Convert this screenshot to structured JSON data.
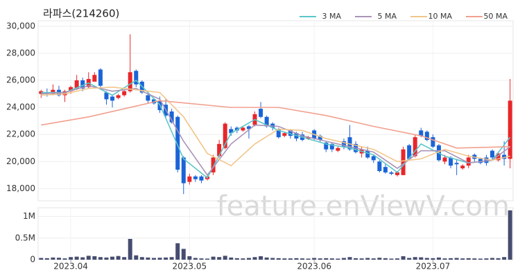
{
  "chart_data": {
    "type": "candlestick",
    "title": "라파스(214260)",
    "watermark": "feature.enViewV.com",
    "up_color": "#e8262a",
    "down_color": "#1a64d8",
    "volume_color": "#474d70",
    "grid": true,
    "open": [
      25000,
      25100,
      25000,
      25300,
      24900,
      25200,
      25400,
      26000,
      25500,
      25900,
      26800,
      25100,
      24800,
      24700,
      24900,
      25200,
      26700,
      25900,
      24900,
      24600,
      24500,
      24200,
      23700,
      23300,
      20300,
      18500,
      18900,
      18900,
      18700,
      19200,
      20400,
      21000,
      22400,
      22500,
      22300,
      22600,
      22700,
      23900,
      23300,
      22800,
      22400,
      21900,
      22300,
      22100,
      22000,
      21700,
      22300,
      21900,
      21400,
      21300,
      20800,
      21500,
      21800,
      21300,
      20600,
      20800,
      20400,
      20000,
      19600,
      19200,
      19000,
      19000,
      21200,
      20400,
      22300,
      22200,
      21800,
      21200,
      20000,
      20300,
      19900,
      19500,
      19700,
      20500,
      20200,
      20300,
      20800,
      20100,
      20500,
      20200
    ],
    "high": [
      25300,
      25400,
      25700,
      25600,
      25300,
      25600,
      26400,
      26200,
      26600,
      26600,
      26900,
      25200,
      24900,
      25000,
      25300,
      29400,
      26800,
      26000,
      25000,
      24700,
      24800,
      24600,
      23900,
      23400,
      20400,
      19100,
      19000,
      19000,
      19000,
      20500,
      21600,
      22900,
      22600,
      22600,
      22600,
      22700,
      23700,
      24400,
      23400,
      22900,
      22500,
      22200,
      22400,
      22200,
      22200,
      21900,
      22400,
      22000,
      21500,
      21400,
      21100,
      21700,
      22700,
      21500,
      21100,
      21100,
      20500,
      20100,
      19800,
      19300,
      19300,
      21100,
      21300,
      22000,
      22500,
      22300,
      22000,
      21300,
      20500,
      20400,
      20200,
      19800,
      20500,
      20600,
      20300,
      20500,
      20900,
      20700,
      21500,
      26100
    ],
    "low": [
      24700,
      24800,
      24900,
      24800,
      24400,
      25000,
      25300,
      25200,
      25400,
      25900,
      25400,
      24200,
      24000,
      24600,
      24800,
      25100,
      25500,
      25000,
      24300,
      24200,
      23600,
      23200,
      22800,
      19200,
      17600,
      18300,
      18500,
      18400,
      18600,
      19000,
      20300,
      20900,
      21900,
      22100,
      22200,
      21700,
      22600,
      23200,
      22500,
      22300,
      21700,
      21800,
      21700,
      21500,
      21500,
      21600,
      21600,
      21400,
      20700,
      20700,
      20700,
      20900,
      20800,
      20600,
      20300,
      20200,
      19900,
      19200,
      19100,
      19000,
      18900,
      19000,
      20100,
      20300,
      21800,
      21500,
      21000,
      20000,
      19800,
      19500,
      19000,
      19400,
      19500,
      20000,
      19800,
      19700,
      20100,
      20000,
      19700,
      19500
    ],
    "close": [
      25200,
      25000,
      25300,
      24900,
      25200,
      25500,
      26000,
      25400,
      26100,
      26400,
      25600,
      24600,
      24500,
      24900,
      25200,
      26600,
      25700,
      25100,
      24500,
      24300,
      23800,
      23400,
      22900,
      19400,
      18400,
      18900,
      18700,
      18600,
      18900,
      20300,
      21300,
      22800,
      22100,
      22300,
      22500,
      22400,
      23500,
      23300,
      22600,
      22500,
      21800,
      22100,
      21900,
      21700,
      21600,
      21800,
      21700,
      21600,
      20900,
      20900,
      21000,
      21100,
      20900,
      20700,
      20900,
      20300,
      20100,
      19300,
      19200,
      19100,
      19200,
      20900,
      20200,
      21800,
      21900,
      21600,
      21100,
      20100,
      20300,
      19700,
      19800,
      19700,
      20300,
      20200,
      19900,
      19900,
      20300,
      20600,
      20200,
      24500
    ],
    "volume": [
      40000,
      35000,
      50000,
      45000,
      30000,
      60000,
      70000,
      55000,
      90000,
      80000,
      60000,
      50000,
      70000,
      85000,
      60000,
      480000,
      100000,
      60000,
      50000,
      40000,
      45000,
      50000,
      60000,
      380000,
      250000,
      80000,
      40000,
      30000,
      25000,
      70000,
      60000,
      90000,
      50000,
      35000,
      30000,
      40000,
      60000,
      80000,
      50000,
      40000,
      35000,
      30000,
      30000,
      35000,
      30000,
      25000,
      40000,
      30000,
      35000,
      30000,
      25000,
      40000,
      60000,
      35000,
      30000,
      40000,
      30000,
      45000,
      35000,
      25000,
      30000,
      80000,
      40000,
      60000,
      55000,
      40000,
      35000,
      50000,
      30000,
      35000,
      40000,
      30000,
      35000,
      30000,
      25000,
      30000,
      40000,
      35000,
      60000,
      1140000
    ],
    "ylim": [
      17100,
      30400
    ],
    "yticks": [
      {
        "value": 18000,
        "label": "18,000"
      },
      {
        "value": 20000,
        "label": "20,000"
      },
      {
        "value": 22000,
        "label": "22,000"
      },
      {
        "value": 24000,
        "label": "24,000"
      },
      {
        "value": 26000,
        "label": "26,000"
      },
      {
        "value": 28000,
        "label": "28,000"
      },
      {
        "value": 30000,
        "label": "30,000"
      }
    ],
    "volume_ylim": [
      0,
      1200000
    ],
    "volume_yticks": [
      0,
      {
        "value": 500000,
        "label": "0.5M"
      },
      {
        "value": 1000000,
        "label": "1M"
      }
    ],
    "xticks": [
      {
        "value": 5,
        "label": "2023.04"
      },
      {
        "value": 25,
        "label": "2023.05"
      },
      {
        "value": 46,
        "label": "2023.06"
      },
      {
        "value": 66,
        "label": "2023.07"
      }
    ],
    "series": [
      {
        "name": "3 MA",
        "color": "#5cc6c9",
        "x": [
          0,
          4,
          8,
          12,
          16,
          20,
          24,
          28,
          32,
          36,
          40,
          44,
          48,
          52,
          56,
          60,
          64,
          68,
          72,
          76,
          79
        ],
        "values": [
          25100,
          25100,
          25800,
          24900,
          26000,
          24200,
          20200,
          18800,
          22100,
          23100,
          22300,
          21800,
          21300,
          21000,
          20500,
          19200,
          21300,
          20400,
          19900,
          20100,
          21800
        ]
      },
      {
        "name": "5 MA",
        "color": "#a993b8",
        "x": [
          0,
          4,
          8,
          12,
          16,
          20,
          24,
          28,
          32,
          36,
          40,
          44,
          48,
          52,
          56,
          60,
          64,
          68,
          72,
          76,
          79
        ],
        "values": [
          25000,
          25100,
          25600,
          25200,
          25400,
          24600,
          21500,
          19000,
          21300,
          22700,
          22600,
          21900,
          21500,
          21100,
          20700,
          19500,
          20800,
          20800,
          19900,
          20100,
          21100
        ]
      },
      {
        "name": "10 MA",
        "color": "#f2c58a",
        "x": [
          0,
          4,
          8,
          12,
          16,
          20,
          24,
          28,
          32,
          36,
          40,
          44,
          48,
          52,
          56,
          60,
          64,
          68,
          72,
          76,
          79
        ],
        "values": [
          24900,
          25000,
          25400,
          25500,
          25300,
          25100,
          23300,
          20600,
          19700,
          21300,
          22400,
          22300,
          21700,
          21300,
          20900,
          20000,
          20200,
          20900,
          20400,
          20100,
          20400
        ]
      },
      {
        "name": "50 MA",
        "color": "#f2a08e",
        "x": [
          0,
          8,
          16,
          20,
          32,
          40,
          48,
          56,
          64,
          70,
          79
        ],
        "values": [
          22700,
          23300,
          24100,
          24500,
          24000,
          24000,
          23400,
          22600,
          21900,
          21000,
          21100
        ]
      }
    ]
  }
}
